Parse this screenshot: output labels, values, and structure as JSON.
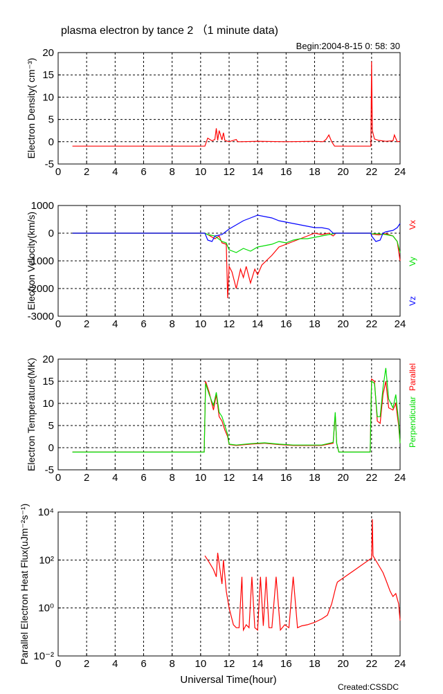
{
  "figure": {
    "title": "plasma electron by tance 2  （1 minute data)",
    "begin_label": "Begin:2004-8-15  0: 58: 30",
    "credit": "Created:CSSDC",
    "xlabel": "Universal Time(hour)",
    "colors": {
      "red": "#ff0000",
      "green": "#00dd00",
      "blue": "#0000ff",
      "axis": "#000000"
    }
  },
  "chart_data": [
    {
      "type": "line",
      "id": "density",
      "ylabel": "Electron Density( cm⁻³)",
      "xlim": [
        0,
        24
      ],
      "ylim": [
        -5,
        20
      ],
      "xticks": [
        "0",
        "2",
        "4",
        "6",
        "8",
        "10",
        "12",
        "14",
        "16",
        "18",
        "20",
        "22",
        "24"
      ],
      "yticks": [
        "-5",
        "0",
        "5",
        "10",
        "15",
        "20"
      ],
      "grid": true,
      "series": [
        {
          "color": "#ff0000",
          "x": [
            1.0,
            10.3,
            10.5,
            10.8,
            11.0,
            11.1,
            11.2,
            11.3,
            11.5,
            11.6,
            11.7,
            11.9,
            12.0,
            12.5,
            12.6,
            12.8,
            14.0,
            16.0,
            18.0,
            18.6,
            18.8,
            19.0,
            19.2,
            19.4,
            19.6,
            19.8,
            20.0,
            21.95,
            22.0,
            22.05,
            22.2,
            22.5,
            23.0,
            23.5,
            23.6,
            23.8,
            24.0
          ],
          "y": [
            -1.0,
            -1.0,
            0.8,
            0.2,
            0.5,
            3.0,
            0.3,
            2.5,
            0.4,
            2.0,
            0.3,
            0.1,
            0.0,
            0.5,
            0.0,
            0.0,
            0.1,
            0.0,
            0.1,
            0.0,
            0.5,
            1.5,
            0.0,
            -1.0,
            -1.0,
            -1.0,
            -1.0,
            -1.0,
            18.0,
            2.5,
            0.6,
            0.3,
            0.1,
            0.2,
            1.5,
            0.0,
            0.1
          ]
        }
      ]
    },
    {
      "type": "line",
      "id": "velocity",
      "ylabel": "Electron Velocity(km/s)",
      "xlim": [
        0,
        24
      ],
      "ylim": [
        -3000,
        1000
      ],
      "xticks": [
        "0",
        "2",
        "4",
        "6",
        "8",
        "10",
        "12",
        "14",
        "16",
        "18",
        "20",
        "22",
        "24"
      ],
      "yticks": [
        "-3000",
        "-2000",
        "-1000",
        "0",
        "1000"
      ],
      "grid": true,
      "right_labels": [
        "Vx",
        "Vy",
        "Vz"
      ],
      "series": [
        {
          "name": "Vx",
          "color": "#ff0000",
          "x": [
            1.0,
            10.3,
            10.5,
            11.0,
            11.3,
            11.5,
            11.8,
            11.9,
            12.0,
            12.2,
            12.5,
            12.8,
            13.0,
            13.2,
            13.5,
            13.8,
            14.0,
            14.3,
            14.6,
            15.0,
            15.5,
            16.0,
            16.5,
            17.0,
            17.5,
            18.0,
            18.5,
            19.0,
            19.3,
            19.5,
            20.0,
            21.95,
            22.0,
            22.5,
            23.0,
            23.5,
            23.8,
            24.0
          ],
          "y": [
            0,
            0,
            -50,
            -200,
            -100,
            -350,
            -400,
            -2350,
            -1200,
            -1400,
            -2000,
            -1300,
            -1600,
            -1200,
            -1800,
            -1300,
            -1500,
            -1150,
            -1000,
            -800,
            -500,
            -400,
            -300,
            -200,
            -100,
            0,
            -50,
            0,
            -100,
            0,
            0,
            0,
            -30,
            -60,
            -20,
            -100,
            -300,
            -1000
          ]
        },
        {
          "name": "Vy",
          "color": "#00dd00",
          "x": [
            1.0,
            10.3,
            10.5,
            11.0,
            11.5,
            11.8,
            12.0,
            12.5,
            13.0,
            13.5,
            14.0,
            14.5,
            15.0,
            15.5,
            16.0,
            16.5,
            17.0,
            17.5,
            18.0,
            18.5,
            19.0,
            19.5,
            20.0,
            21.95,
            22.0,
            22.5,
            23.0,
            23.5,
            23.8,
            24.0
          ],
          "y": [
            0,
            0,
            -50,
            -100,
            -300,
            -350,
            -600,
            -700,
            -550,
            -650,
            -500,
            -450,
            -400,
            -300,
            -350,
            -250,
            -200,
            -200,
            -150,
            -100,
            -50,
            0,
            0,
            0,
            -20,
            -20,
            -50,
            -100,
            -300,
            -700
          ]
        },
        {
          "name": "Vz",
          "color": "#0000ff",
          "x": [
            1.0,
            10.3,
            10.5,
            10.8,
            11.0,
            11.5,
            12.0,
            12.5,
            13.0,
            13.5,
            14.0,
            14.5,
            15.0,
            15.5,
            16.0,
            16.5,
            17.0,
            17.5,
            18.0,
            18.5,
            19.0,
            19.3,
            19.5,
            20.0,
            21.95,
            22.0,
            22.3,
            22.6,
            22.8,
            23.0,
            23.5,
            23.8,
            24.0
          ],
          "y": [
            0,
            0,
            -250,
            -300,
            -100,
            -50,
            150,
            300,
            450,
            550,
            650,
            600,
            550,
            450,
            400,
            350,
            300,
            250,
            200,
            200,
            150,
            0,
            0,
            0,
            0,
            -100,
            -300,
            -250,
            0,
            50,
            100,
            200,
            350
          ]
        }
      ]
    },
    {
      "type": "line",
      "id": "temperature",
      "ylabel": "Electron Temperature(MK)",
      "xlim": [
        0,
        24
      ],
      "ylim": [
        -5,
        20
      ],
      "xticks": [
        "0",
        "2",
        "4",
        "6",
        "8",
        "10",
        "12",
        "14",
        "16",
        "18",
        "20",
        "22",
        "24"
      ],
      "yticks": [
        "-5",
        "0",
        "5",
        "10",
        "15",
        "20"
      ],
      "grid": true,
      "right_labels": [
        "Parallel",
        "Perpendicular"
      ],
      "series": [
        {
          "name": "Parallel",
          "color": "#ff0000",
          "x": [
            1.0,
            10.25,
            10.35,
            10.6,
            10.9,
            11.1,
            11.3,
            11.5,
            11.7,
            11.9,
            12.0,
            12.5,
            13.5,
            14.5,
            15.5,
            16.5,
            17.5,
            18.5,
            19.3,
            19.45,
            19.55,
            19.7,
            20.0,
            21.9,
            22.0,
            22.2,
            22.4,
            22.6,
            22.8,
            23.0,
            23.2,
            23.5,
            23.7,
            23.9,
            24.0
          ],
          "y": [
            -1.0,
            -1.0,
            15.0,
            12.5,
            8.5,
            12.0,
            7.0,
            6.0,
            4.0,
            2.5,
            0.7,
            0.5,
            0.8,
            1.0,
            0.7,
            0.5,
            0.5,
            0.5,
            1.0,
            7.5,
            1.0,
            -1.0,
            -1.0,
            -1.0,
            15.5,
            15.0,
            6.0,
            5.5,
            12.0,
            15.0,
            9.0,
            8.5,
            10.0,
            5.0,
            1.0
          ]
        },
        {
          "name": "Perpendicular",
          "color": "#00dd00",
          "x": [
            1.0,
            10.25,
            10.35,
            10.6,
            10.9,
            11.1,
            11.3,
            11.5,
            11.7,
            11.9,
            12.0,
            12.5,
            13.5,
            14.5,
            15.5,
            16.5,
            17.5,
            18.5,
            19.3,
            19.45,
            19.55,
            19.7,
            20.0,
            21.9,
            22.0,
            22.2,
            22.4,
            22.6,
            22.8,
            23.0,
            23.2,
            23.5,
            23.7,
            23.9,
            24.0
          ],
          "y": [
            -1.0,
            -1.0,
            14.5,
            12.0,
            9.5,
            12.5,
            8.0,
            7.0,
            5.0,
            3.0,
            0.8,
            0.6,
            0.9,
            1.1,
            0.8,
            0.6,
            0.6,
            0.6,
            1.2,
            8.0,
            1.0,
            -1.0,
            -1.0,
            -1.0,
            15.0,
            14.5,
            7.0,
            7.0,
            13.5,
            18.0,
            11.0,
            9.0,
            12.0,
            6.0,
            1.0
          ]
        }
      ]
    },
    {
      "type": "line",
      "id": "heatflux",
      "ylabel": "Parallel Electron Heat Flux(uJm⁻²s⁻¹)",
      "xlim": [
        0,
        24
      ],
      "ylim": [
        0.01,
        10000
      ],
      "yscale": "log",
      "xticks": [
        "0",
        "2",
        "4",
        "6",
        "8",
        "10",
        "12",
        "14",
        "16",
        "18",
        "20",
        "22",
        "24"
      ],
      "yticks": [
        "10⁻²",
        "10⁰",
        "10²",
        "10⁴"
      ],
      "grid": true,
      "series": [
        {
          "color": "#ff0000",
          "x": [
            10.3,
            10.6,
            10.9,
            11.1,
            11.2,
            11.5,
            11.6,
            11.8,
            12.0,
            12.3,
            12.5,
            12.7,
            12.9,
            13.0,
            13.2,
            13.4,
            13.6,
            13.8,
            14.0,
            14.2,
            14.4,
            14.6,
            14.8,
            15.0,
            15.3,
            15.6,
            15.9,
            16.2,
            16.5,
            16.8,
            17.1,
            17.5,
            18.0,
            18.5,
            18.9,
            19.2,
            19.5,
            19.6,
            22.0,
            22.05,
            22.1,
            22.5,
            22.8,
            23.0,
            23.3,
            23.5,
            23.7,
            23.9,
            24.0
          ],
          "y": [
            150,
            80,
            40,
            20,
            200,
            10,
            100,
            5,
            1,
            0.2,
            0.15,
            0.15,
            20,
            0.12,
            0.2,
            0.15,
            20,
            0.15,
            0.12,
            20,
            0.18,
            20,
            0.15,
            0.15,
            20,
            0.12,
            0.2,
            0.15,
            20,
            0.15,
            0.18,
            0.2,
            0.25,
            0.35,
            0.5,
            1.5,
            8,
            12,
            120,
            5000,
            150,
            60,
            30,
            15,
            5,
            3,
            4,
            1.5,
            0.3
          ]
        }
      ]
    }
  ]
}
